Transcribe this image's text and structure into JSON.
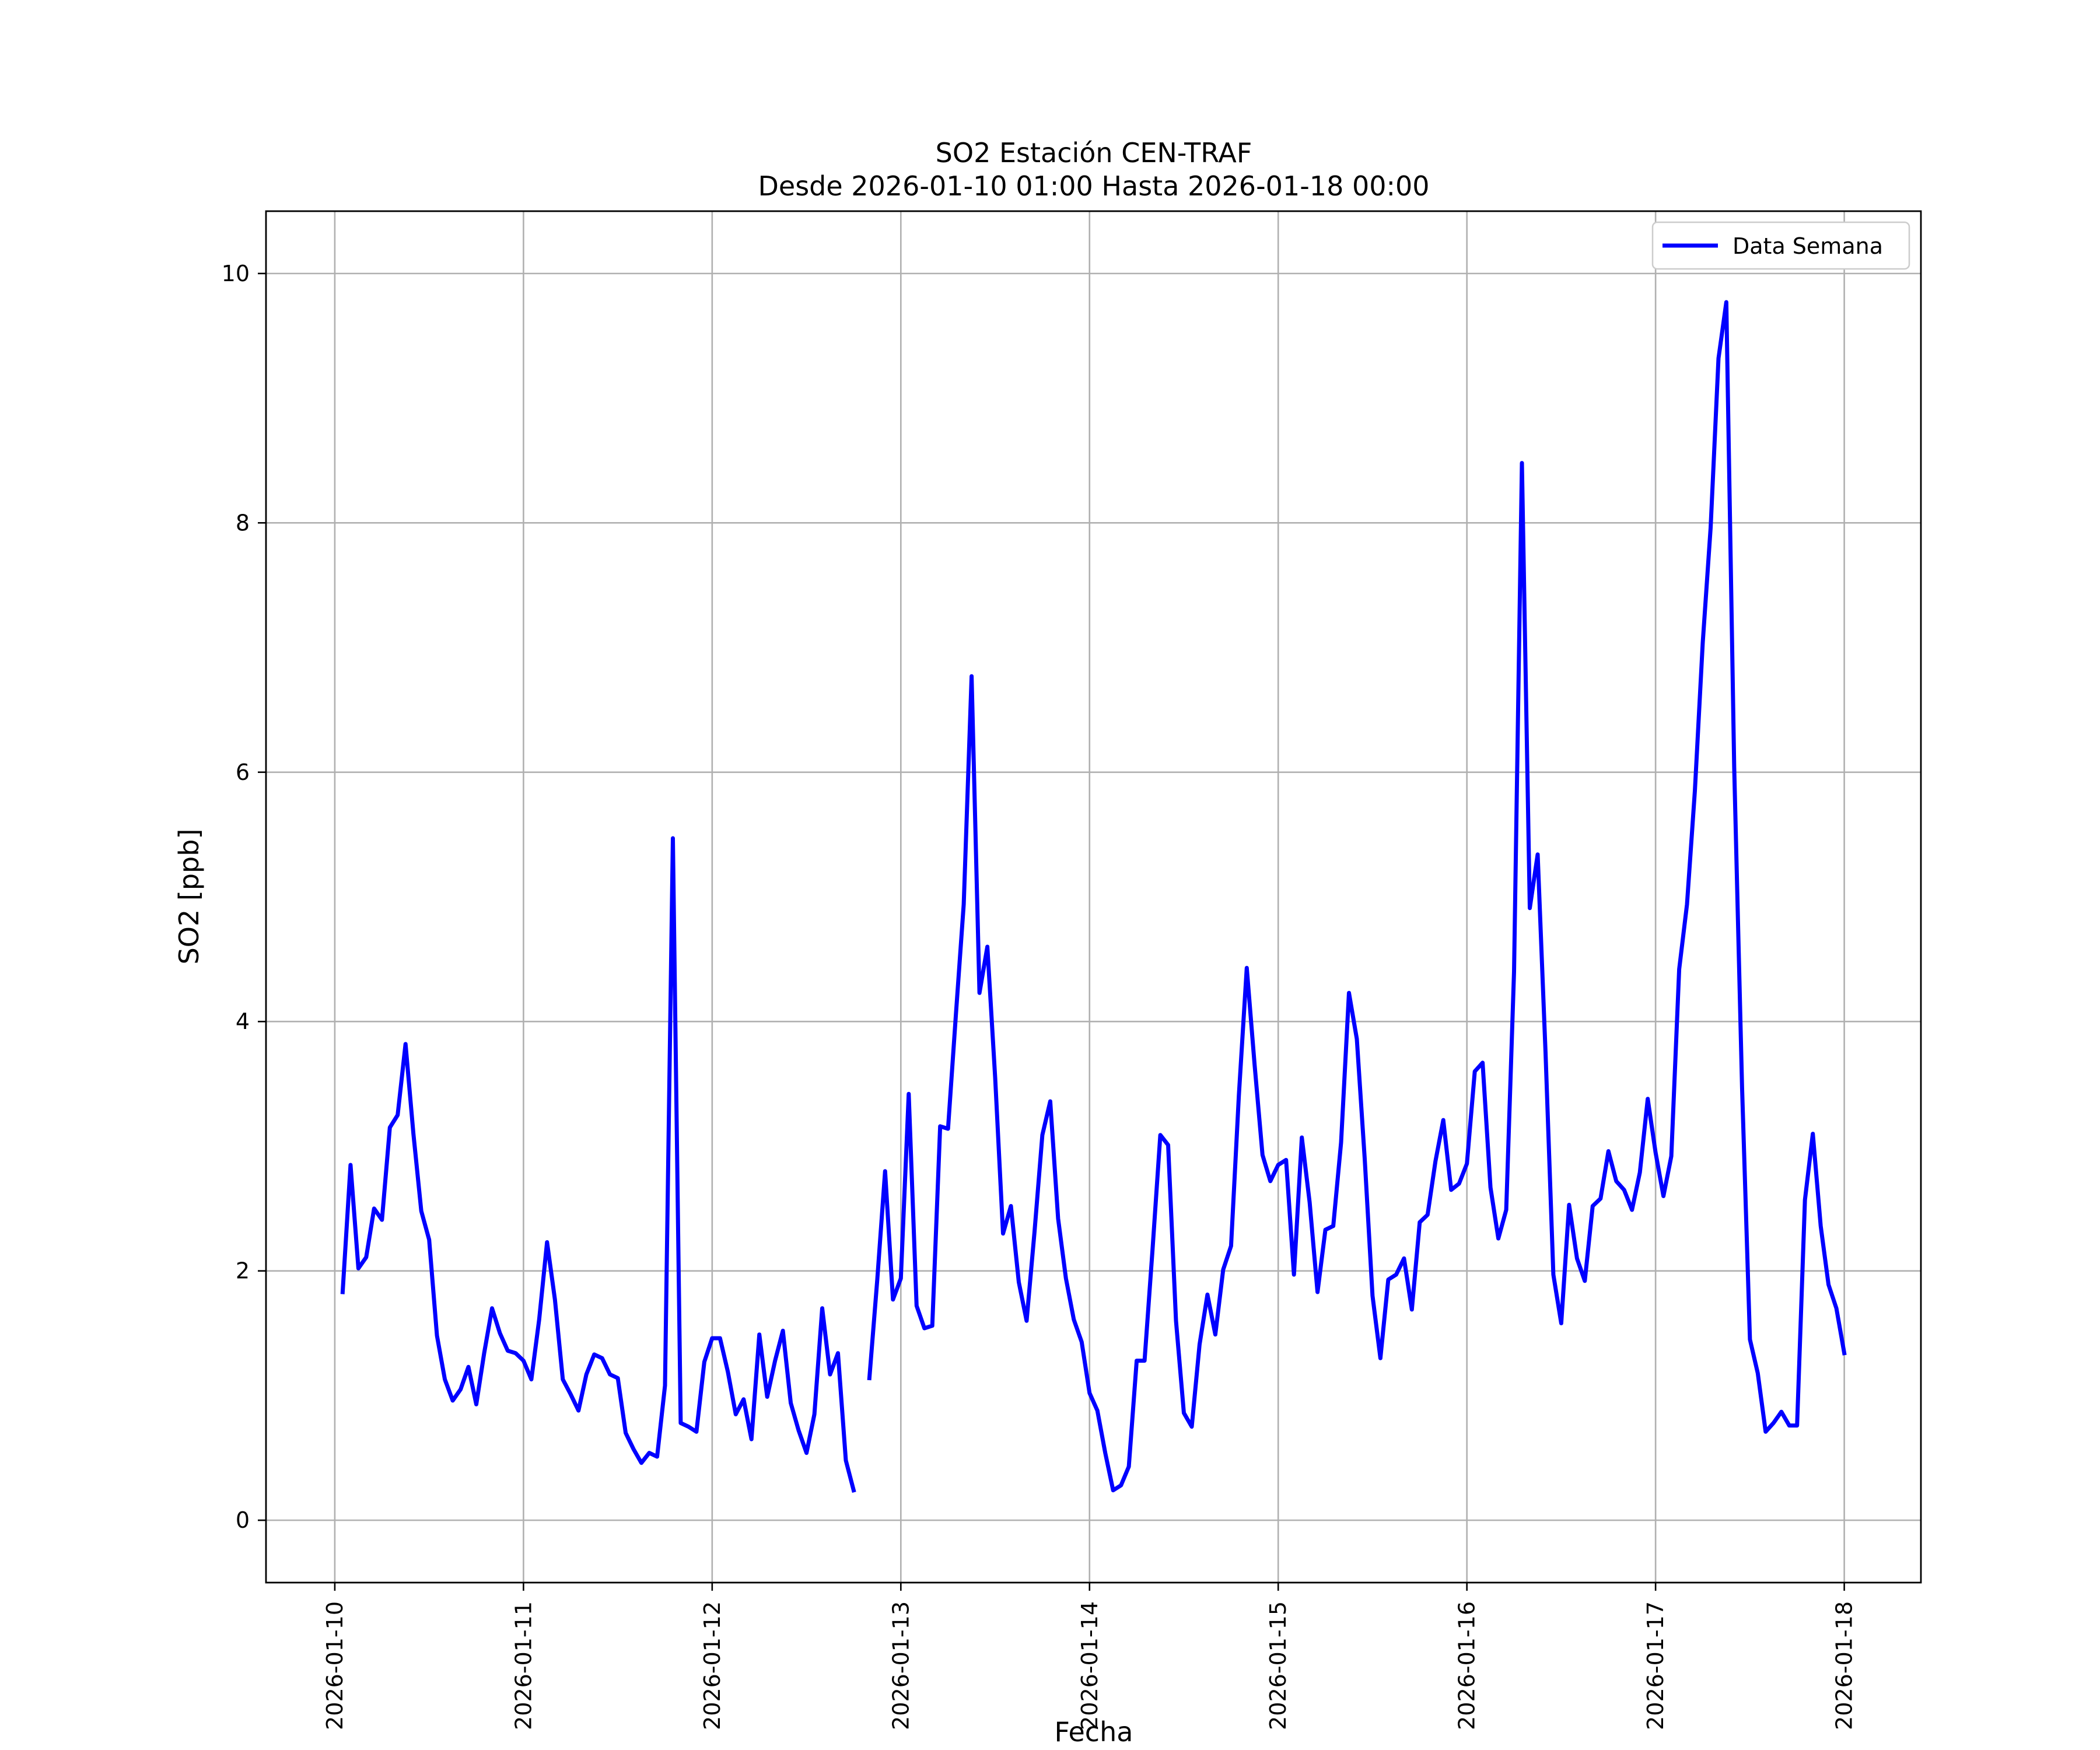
{
  "chart_data": {
    "type": "line",
    "title": "SO2 Estación CEN-TRAF",
    "subtitle": "Desde 2026-01-10 01:00 Hasta 2026-01-18 00:00",
    "xlabel": "Fecha",
    "ylabel": "SO2 [ppb]",
    "xlim": [
      "2026-01-09T15:15",
      "2026-01-18T09:45"
    ],
    "ylim": [
      -0.5,
      10.5
    ],
    "x_ticks": [
      "2026-01-10",
      "2026-01-11",
      "2026-01-12",
      "2026-01-13",
      "2026-01-14",
      "2026-01-15",
      "2026-01-16",
      "2026-01-17",
      "2026-01-18"
    ],
    "y_ticks": [
      0,
      2,
      4,
      6,
      8,
      10
    ],
    "grid": true,
    "legend_position": "upper right",
    "series": [
      {
        "name": "Data Semana",
        "color": "#0000ff",
        "x_start": "2026-01-10T01:00",
        "x_step": "1 hour",
        "values": [
          1.83,
          2.85,
          2.02,
          2.11,
          2.5,
          2.41,
          3.15,
          3.25,
          3.82,
          3.1,
          2.48,
          2.25,
          1.48,
          1.13,
          0.96,
          1.05,
          1.23,
          0.93,
          1.34,
          1.7,
          1.5,
          1.36,
          1.34,
          1.28,
          1.13,
          1.61,
          2.23,
          1.77,
          1.13,
          1.01,
          0.88,
          1.17,
          1.33,
          1.3,
          1.17,
          1.14,
          0.7,
          0.57,
          0.46,
          0.54,
          0.51,
          1.08,
          5.47,
          0.78,
          0.75,
          0.71,
          1.27,
          1.46,
          1.46,
          1.19,
          0.85,
          0.97,
          0.65,
          1.49,
          0.99,
          1.28,
          1.52,
          0.94,
          0.72,
          0.54,
          0.85,
          1.7,
          1.17,
          1.34,
          0.48,
          0.24,
          null,
          1.14,
          1.93,
          2.8,
          1.77,
          1.94,
          3.42,
          1.72,
          1.54,
          1.56,
          3.16,
          3.14,
          4.05,
          4.94,
          6.77,
          4.23,
          4.6,
          3.55,
          2.3,
          2.52,
          1.91,
          1.6,
          2.31,
          3.09,
          3.36,
          2.42,
          1.94,
          1.61,
          1.43,
          1.02,
          0.88,
          0.54,
          0.24,
          0.28,
          0.43,
          1.28,
          1.28,
          2.16,
          3.09,
          3.01,
          1.6,
          0.86,
          0.75,
          1.41,
          1.81,
          1.49,
          2.01,
          2.2,
          3.41,
          4.43,
          3.65,
          2.93,
          2.72,
          2.85,
          2.89,
          1.97,
          3.07,
          2.55,
          1.83,
          2.33,
          2.36,
          3.03,
          4.23,
          3.86,
          2.9,
          1.8,
          1.3,
          1.93,
          1.97,
          2.1,
          1.69,
          2.39,
          2.45,
          2.88,
          3.21,
          2.65,
          2.7,
          2.86,
          3.6,
          3.67,
          2.67,
          2.26,
          2.49,
          4.4,
          8.48,
          4.91,
          5.34,
          3.75,
          1.97,
          1.58,
          2.53,
          2.1,
          1.92,
          2.52,
          2.58,
          2.96,
          2.72,
          2.65,
          2.49,
          2.79,
          3.38,
          2.95,
          2.6,
          2.92,
          4.42,
          4.94,
          5.85,
          7.04,
          7.96,
          9.32,
          9.77,
          6.04,
          3.47,
          1.45,
          1.18,
          0.71,
          0.78,
          0.87,
          0.76,
          0.76,
          2.57,
          3.1,
          2.36,
          1.89,
          1.7,
          1.34
        ]
      }
    ]
  }
}
